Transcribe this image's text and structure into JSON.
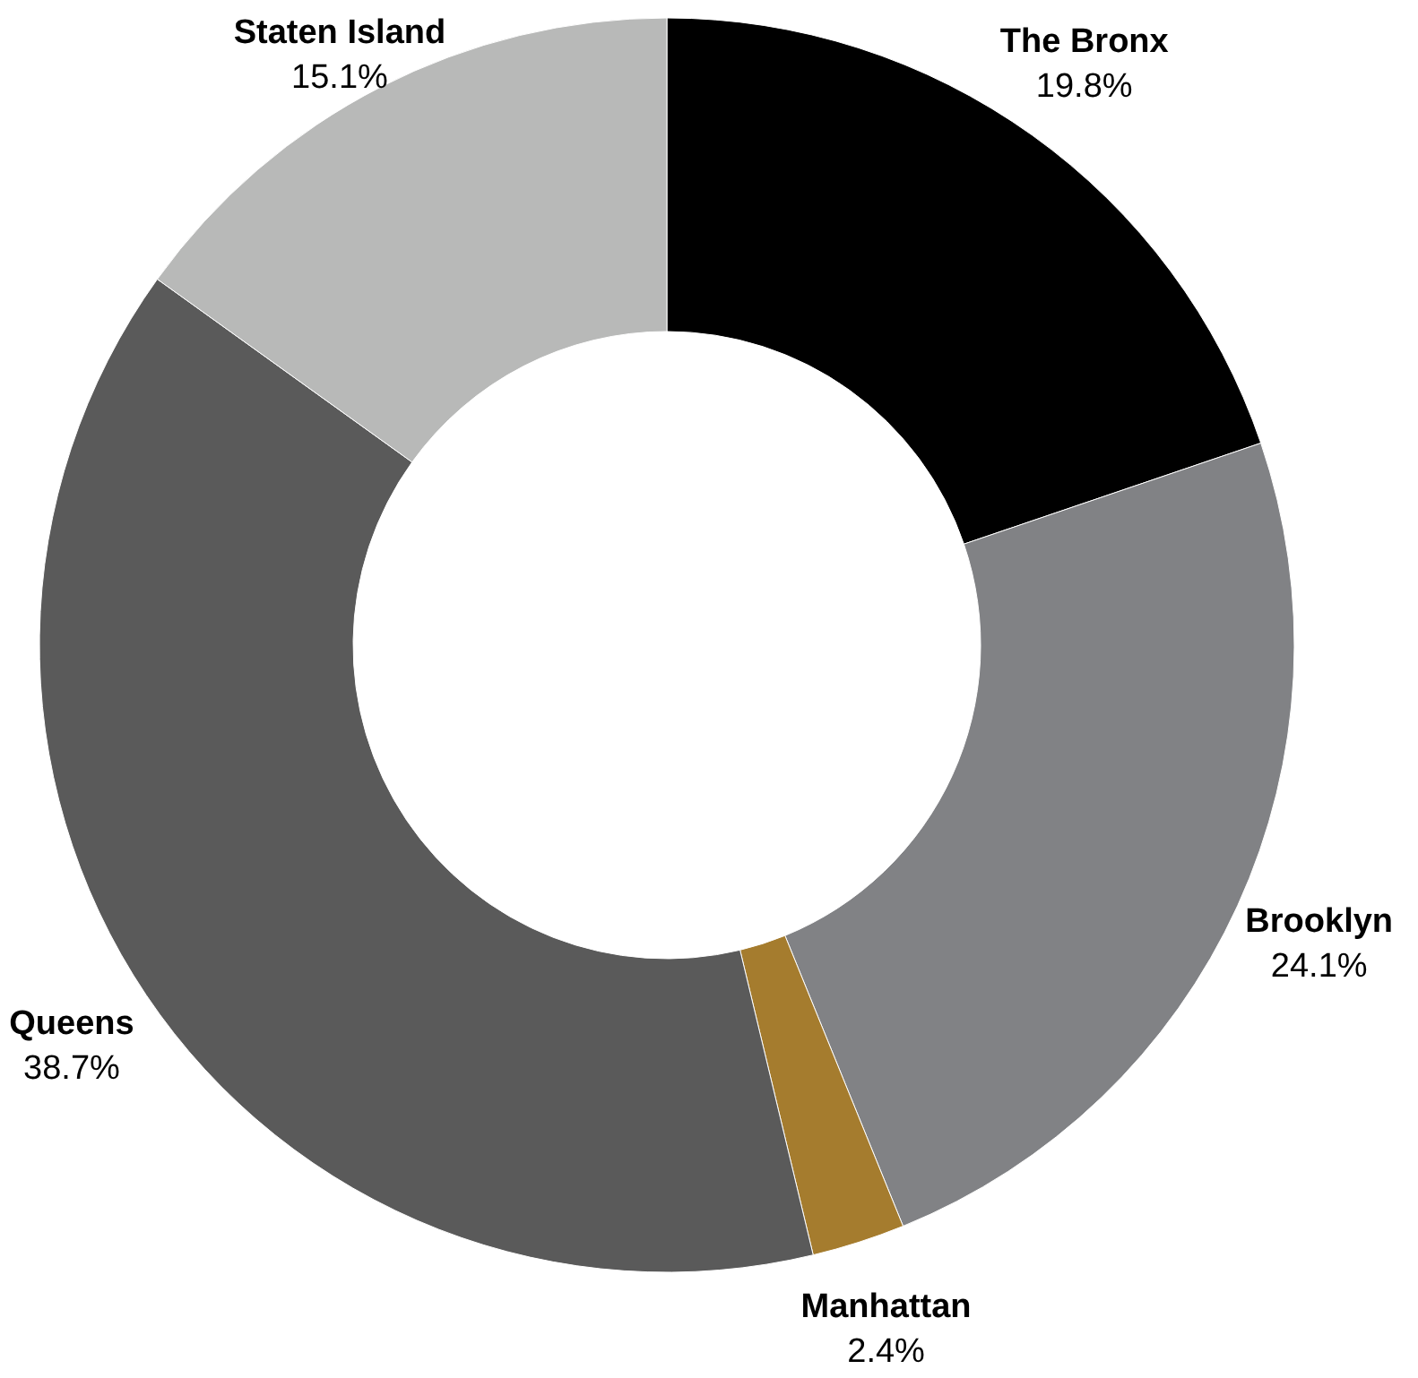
{
  "chart_data": {
    "type": "donut",
    "categories": [
      "The Bronx",
      "Brooklyn",
      "Manhattan",
      "Queens",
      "Staten Island"
    ],
    "values": [
      19.8,
      24.1,
      2.4,
      38.7,
      15.1
    ],
    "value_labels": [
      "19.8%",
      "24.1%",
      "2.4%",
      "38.7%",
      "15.1%"
    ],
    "colors": [
      "#000000",
      "#818285",
      "#a57c2e",
      "#5a5a5a",
      "#b8b9b8"
    ]
  }
}
